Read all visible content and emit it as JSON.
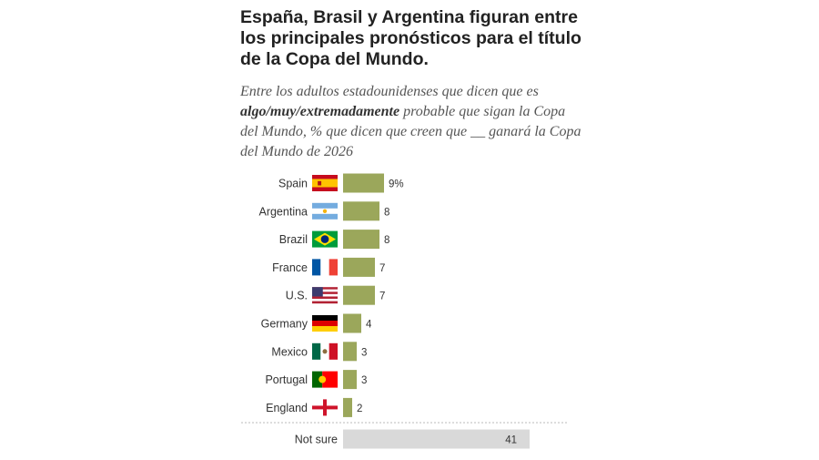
{
  "title": "España, Brasil y Argentina figuran entre los principales pronósticos para el título de la Copa del Mundo.",
  "subtitle": {
    "before": "Entre los adultos estadounidenses que dicen que es ",
    "emphasis": "algo/muy/extremadamente",
    "after": " probable que sigan la Copa del Mundo, % que dicen que creen que __ ganará la Copa del Mundo de 2026"
  },
  "colors": {
    "bar": "#9ba75b",
    "not_sure_bar": "#d9d9d9",
    "text": "#333333",
    "divider": "#bbbbbb"
  },
  "chart_data": {
    "type": "bar",
    "orientation": "horizontal",
    "unit": "%",
    "categories": [
      "Spain",
      "Argentina",
      "Brazil",
      "France",
      "U.S.",
      "Germany",
      "Mexico",
      "Portugal",
      "England"
    ],
    "flags": [
      "spain-flag",
      "argentina-flag",
      "brazil-flag",
      "france-flag",
      "us-flag",
      "germany-flag",
      "mexico-flag",
      "portugal-flag",
      "england-flag"
    ],
    "values": [
      9,
      8,
      8,
      7,
      7,
      4,
      3,
      3,
      2
    ],
    "value_labels": [
      "9%",
      "8",
      "8",
      "7",
      "7",
      "4",
      "3",
      "3",
      "2"
    ],
    "not_sure": {
      "label": "Not sure",
      "value": 41,
      "value_label": "41"
    }
  }
}
